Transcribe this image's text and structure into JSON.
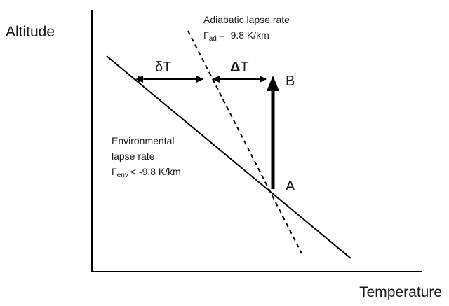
{
  "axes": {
    "y_label": "Altitude",
    "x_label": "Temperature"
  },
  "adiabatic": {
    "title": "Adiabatic lapse rate",
    "symbol": "Γ",
    "subscript": "ad",
    "equation": "= -9.8 K/km"
  },
  "environmental": {
    "line1": "Environmental",
    "line2": "lapse rate",
    "symbol": "Γ",
    "subscript": "env",
    "equation": "< -9.8 K/km"
  },
  "labels": {
    "delta_small": "δT",
    "delta_capital": "Δ",
    "delta_capital_t": "T",
    "point_a": "A",
    "point_b": "B"
  }
}
